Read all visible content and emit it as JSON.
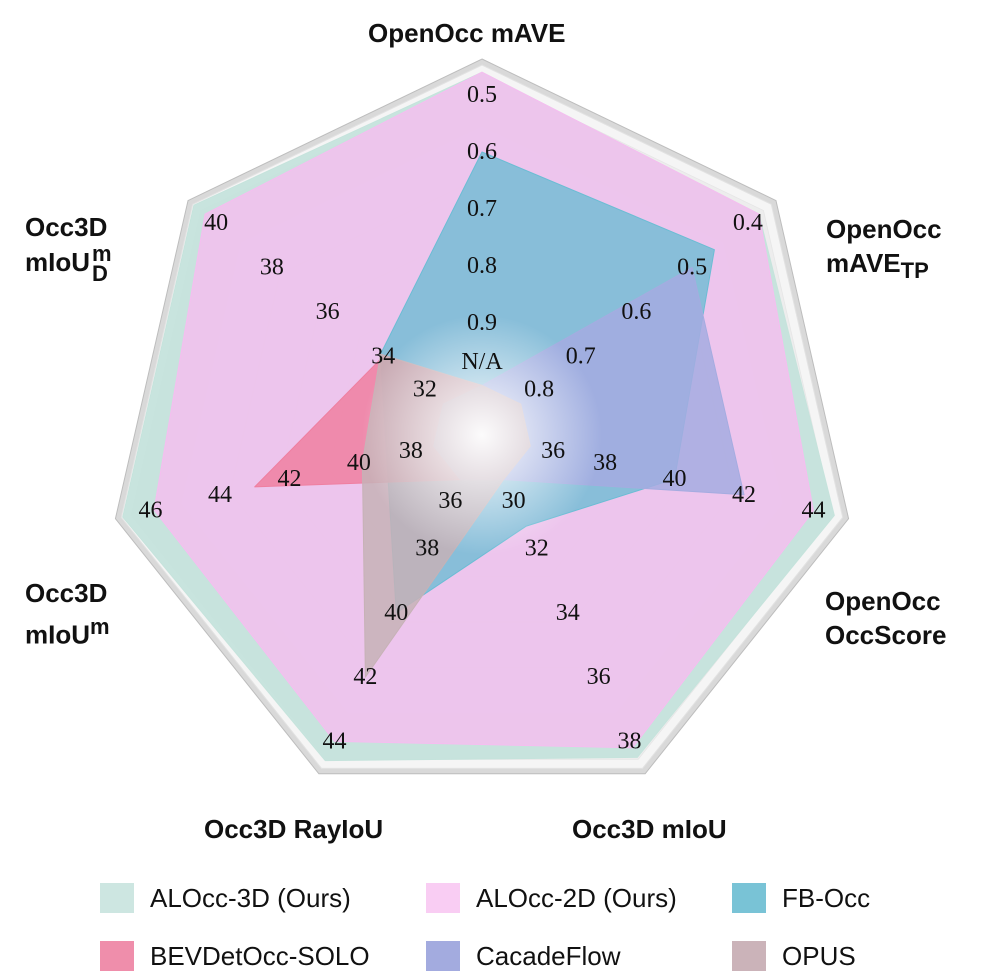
{
  "chart_data": {
    "type": "radar",
    "axes": [
      {
        "name": "OpenOcc mAVE",
        "lines": [
          "OpenOcc mAVE"
        ],
        "center_label": "N/A",
        "ticks": [
          "0.9",
          "0.8",
          "0.7",
          "0.6",
          "0.5"
        ],
        "range": [
          1.0,
          0.5
        ],
        "inverted": true
      },
      {
        "name": "OpenOcc mAVE_TP",
        "lines": [
          "OpenOcc",
          "mAVE_TP"
        ],
        "center_label": "0.8",
        "ticks": [
          "0.7",
          "0.6",
          "0.5",
          "0.4"
        ],
        "range": [
          0.8,
          0.4
        ],
        "inverted": true
      },
      {
        "name": "OpenOcc OccScore",
        "lines": [
          "OpenOcc",
          "OccScore"
        ],
        "center_label": "36",
        "ticks": [
          "38",
          "40",
          "42",
          "44"
        ],
        "range": [
          36,
          44
        ]
      },
      {
        "name": "Occ3D mIoU",
        "lines": [
          "Occ3D mIoU"
        ],
        "center_label": "30",
        "ticks": [
          "32",
          "34",
          "36",
          "38"
        ],
        "range": [
          30,
          38
        ]
      },
      {
        "name": "Occ3D RayIoU",
        "lines": [
          "Occ3D RayIoU"
        ],
        "center_label": "36",
        "ticks": [
          "38",
          "40",
          "42",
          "44"
        ],
        "range": [
          36,
          44
        ]
      },
      {
        "name": "Occ3D mIoU^m",
        "lines": [
          "Occ3D",
          "mIoU^m"
        ],
        "center_label": "38",
        "ticks": [
          "40",
          "42",
          "44",
          "46"
        ],
        "range": [
          38,
          46
        ]
      },
      {
        "name": "Occ3D mIoU_D^m",
        "lines": [
          "Occ3D",
          "mIoU_D^m"
        ],
        "center_label": "32",
        "ticks": [
          "34",
          "36",
          "38",
          "40"
        ],
        "range": [
          32,
          40
        ]
      }
    ],
    "series": [
      {
        "name": "ALOcc-3D (Ours)",
        "color": "#c5e3dc",
        "values": [
          0.46,
          0.38,
          44.6,
          38.5,
          44.6,
          46.8,
          40.8
        ]
      },
      {
        "name": "ALOcc-2D (Ours)",
        "color": "#f6bdf0",
        "values": [
          0.46,
          0.38,
          44.0,
          38.2,
          44.0,
          45.9,
          40.4
        ]
      },
      {
        "name": "FB-Occ",
        "color": "#6bbdd4",
        "values": [
          0.6,
          0.46,
          40.0,
          31.3,
          40.0,
          39.2,
          34.1
        ]
      },
      {
        "name": "BEVDetOcc-SOLO",
        "color": "#ef7fa0",
        "values": [
          null,
          null,
          null,
          null,
          null,
          43.0,
          34.0
        ]
      },
      {
        "name": "CacadeFlow",
        "color": "#a5ace0",
        "values": [
          null,
          0.5,
          42.0,
          null,
          null,
          null,
          null
        ]
      },
      {
        "name": "OPUS",
        "color": "#c6b2b6",
        "values": [
          null,
          null,
          null,
          null,
          42.0,
          39.9,
          34.1
        ]
      }
    ]
  },
  "legend": {
    "items": [
      {
        "label": "ALOcc-3D (Ours)",
        "color": "#cde6e1"
      },
      {
        "label": "ALOcc-2D (Ours)",
        "color": "#f9cdf3"
      },
      {
        "label": "FB-Occ",
        "color": "#79c3d6"
      },
      {
        "label": "BEVDetOcc-SOLO",
        "color": "#ef8eab"
      },
      {
        "label": "CacadeFlow",
        "color": "#a3abdf"
      },
      {
        "label": "OPUS",
        "color": "#cbb3b9"
      }
    ]
  }
}
